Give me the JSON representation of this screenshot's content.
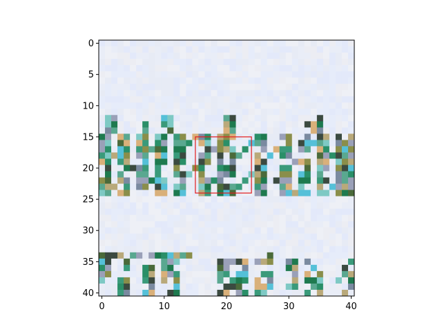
{
  "chart_data": {
    "type": "heatmap",
    "title": "",
    "xlabel": "",
    "ylabel": "",
    "grid": false,
    "legend": "none",
    "x_range": [
      -0.5,
      40.5
    ],
    "y_range": [
      40.5,
      -0.5
    ],
    "y_inverted": true,
    "grid_size": [
      41,
      41
    ],
    "x_ticks": [
      0,
      10,
      20,
      30,
      40
    ],
    "y_ticks": [
      0,
      5,
      10,
      15,
      20,
      25,
      30,
      35,
      40
    ],
    "x_tick_labels": [
      "0",
      "10",
      "20",
      "30",
      "40"
    ],
    "y_tick_labels": [
      "0",
      "5",
      "10",
      "15",
      "20",
      "25",
      "30",
      "35",
      "40"
    ],
    "highlight_box": {
      "x0": 15,
      "y0": 15,
      "x1": 24,
      "y1": 24,
      "color": "#e31a1c"
    },
    "background_color": "#e6ecfa",
    "palette": [
      "#1e7a4f",
      "#2a8f68",
      "#3a9a7a",
      "#5aa890",
      "#7ec9c4",
      "#4a6a3a",
      "#8a8e4a",
      "#b9a97a",
      "#d9b07a",
      "#9aa0b8",
      "#7a8aa0",
      "#55c0d8",
      "#3b4a40"
    ],
    "description_regions": [
      {
        "rows": [
          15,
          24
        ],
        "cols": [
          0,
          40
        ],
        "kind": "dense-glyph-band"
      },
      {
        "rows": [
          34,
          40
        ],
        "cols": [
          0,
          40
        ],
        "kind": "dense-glyph-band"
      }
    ]
  }
}
